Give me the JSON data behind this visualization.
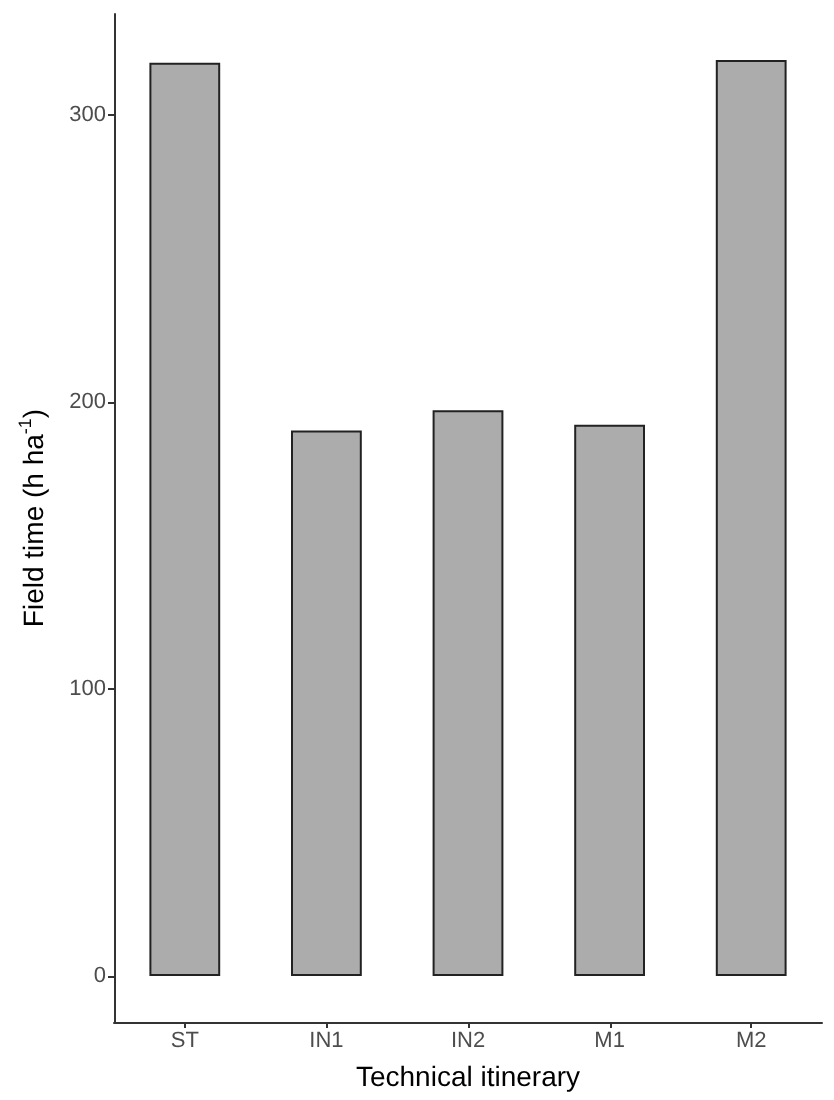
{
  "chart_data": {
    "type": "bar",
    "xlabel": "Technical itinerary",
    "ylabel": "Field time (h ha$^{-1}$)",
    "categories": [
      "ST",
      "IN1",
      "IN2",
      "M1",
      "M2"
    ],
    "values": [
      318,
      190,
      197,
      192,
      319
    ],
    "color": "#acacac",
    "ylim": [
      -16,
      335
    ],
    "yticks": [
      0,
      100,
      200,
      300
    ],
    "grid": false
  }
}
